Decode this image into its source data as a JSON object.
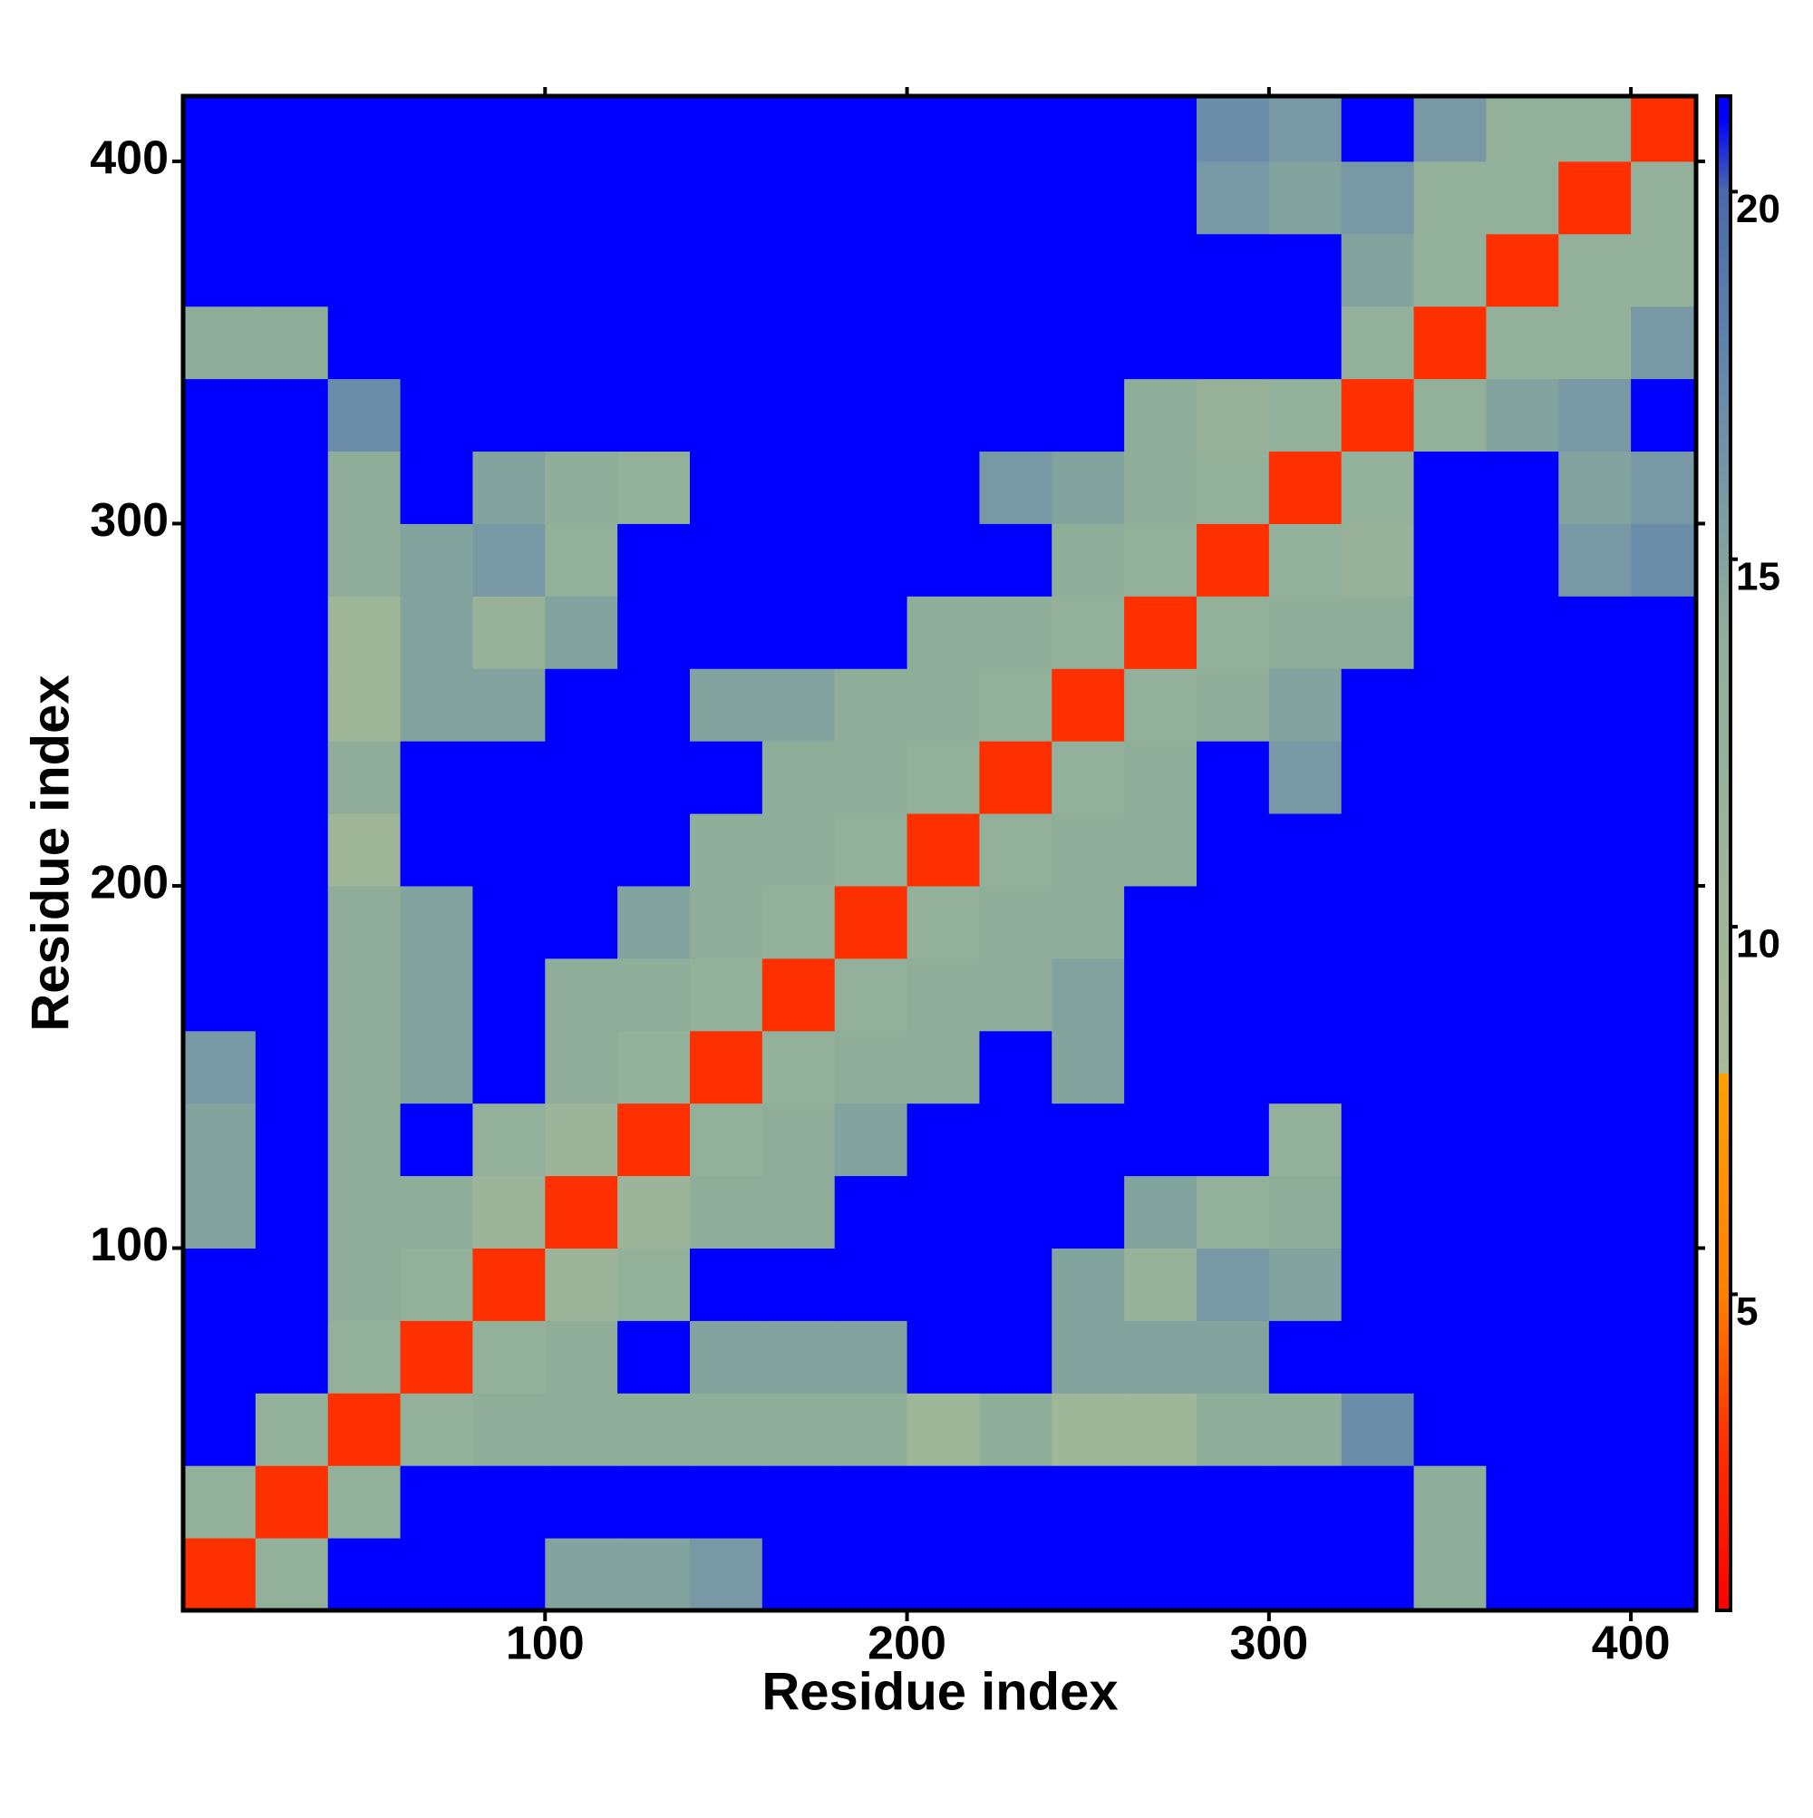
{
  "chart_data": {
    "type": "heatmap",
    "xlabel": "Residue index",
    "ylabel": "Residue index",
    "xlim": [
      0,
      418
    ],
    "ylim": [
      0,
      418
    ],
    "xticks": [
      100,
      200,
      300,
      400
    ],
    "yticks": [
      100,
      200,
      300,
      400
    ],
    "x_edges": [
      0,
      20,
      40,
      60,
      80,
      100,
      120,
      140,
      160,
      180,
      200,
      220,
      240,
      260,
      280,
      300,
      320,
      340,
      360,
      380,
      400,
      420
    ],
    "y_edges": [
      0,
      20,
      40,
      60,
      80,
      100,
      120,
      140,
      160,
      180,
      200,
      220,
      240,
      260,
      280,
      300,
      320,
      340,
      360,
      380,
      400,
      420
    ],
    "z": [
      [
        3,
        13,
        21,
        21,
        21,
        15,
        15,
        16,
        21,
        21,
        21,
        21,
        21,
        21,
        21,
        21,
        21,
        14,
        21,
        21,
        21
      ],
      [
        13,
        3,
        13,
        21,
        21,
        21,
        21,
        21,
        21,
        21,
        21,
        21,
        21,
        21,
        21,
        21,
        21,
        14,
        21,
        21,
        21
      ],
      [
        21,
        13,
        3,
        13,
        14,
        14,
        14,
        14,
        14,
        14,
        10,
        14,
        10,
        10,
        14,
        14,
        17,
        21,
        21,
        21,
        21
      ],
      [
        21,
        21,
        13,
        3,
        13,
        14,
        21,
        15,
        15,
        15,
        21,
        21,
        15,
        15,
        15,
        21,
        21,
        21,
        21,
        21,
        21
      ],
      [
        21,
        21,
        14,
        13,
        3,
        11,
        13,
        21,
        21,
        21,
        21,
        21,
        15,
        12,
        16,
        15,
        21,
        21,
        21,
        21,
        21
      ],
      [
        15,
        21,
        14,
        14,
        11,
        3,
        11,
        14,
        14,
        21,
        21,
        21,
        21,
        15,
        13,
        14,
        21,
        21,
        21,
        21,
        21
      ],
      [
        15,
        21,
        14,
        21,
        13,
        11,
        3,
        13,
        14,
        15,
        21,
        21,
        21,
        21,
        21,
        13,
        21,
        21,
        21,
        21,
        21
      ],
      [
        16,
        21,
        14,
        15,
        21,
        14,
        13,
        3,
        13,
        14,
        14,
        21,
        15,
        21,
        21,
        21,
        21,
        21,
        21,
        21,
        21
      ],
      [
        21,
        21,
        14,
        15,
        21,
        14,
        14,
        13,
        3,
        13,
        14,
        14,
        15,
        21,
        21,
        21,
        21,
        21,
        21,
        21,
        21
      ],
      [
        21,
        21,
        14,
        15,
        21,
        21,
        15,
        14,
        13,
        3,
        13,
        14,
        14,
        21,
        21,
        21,
        21,
        21,
        21,
        21,
        21
      ],
      [
        21,
        21,
        10,
        21,
        21,
        21,
        21,
        14,
        14,
        13,
        3,
        13,
        14,
        14,
        21,
        21,
        21,
        21,
        21,
        21,
        21
      ],
      [
        21,
        21,
        14,
        21,
        21,
        21,
        21,
        21,
        14,
        14,
        13,
        3,
        13,
        14,
        21,
        16,
        21,
        21,
        21,
        21,
        21
      ],
      [
        21,
        21,
        10,
        15,
        15,
        21,
        21,
        15,
        15,
        14,
        14,
        13,
        3,
        13,
        14,
        15,
        21,
        21,
        21,
        21,
        21
      ],
      [
        21,
        21,
        10,
        15,
        12,
        15,
        21,
        21,
        21,
        21,
        14,
        14,
        13,
        3,
        13,
        14,
        14,
        21,
        21,
        21,
        21
      ],
      [
        21,
        21,
        14,
        15,
        16,
        13,
        21,
        21,
        21,
        21,
        21,
        21,
        14,
        13,
        3,
        13,
        12,
        21,
        21,
        16,
        17
      ],
      [
        21,
        21,
        14,
        21,
        15,
        14,
        13,
        21,
        21,
        21,
        21,
        16,
        15,
        14,
        13,
        3,
        13,
        21,
        21,
        15,
        16
      ],
      [
        21,
        21,
        17,
        21,
        21,
        21,
        21,
        21,
        21,
        21,
        21,
        21,
        21,
        14,
        12,
        13,
        3,
        13,
        15,
        16,
        21
      ],
      [
        14,
        14,
        21,
        21,
        21,
        21,
        21,
        21,
        21,
        21,
        21,
        21,
        21,
        21,
        21,
        21,
        13,
        3,
        13,
        13,
        16
      ],
      [
        21,
        21,
        21,
        21,
        21,
        21,
        21,
        21,
        21,
        21,
        21,
        21,
        21,
        21,
        21,
        21,
        15,
        13,
        3,
        13,
        13
      ],
      [
        21,
        21,
        21,
        21,
        21,
        21,
        21,
        21,
        21,
        21,
        21,
        21,
        21,
        21,
        16,
        15,
        16,
        13,
        13,
        3,
        13
      ],
      [
        21,
        21,
        21,
        21,
        21,
        21,
        21,
        21,
        21,
        21,
        21,
        21,
        21,
        21,
        17,
        16,
        21,
        16,
        13,
        13,
        3
      ]
    ],
    "clim": [
      0.7,
      21.3
    ],
    "cticks": [
      5,
      10,
      15,
      20
    ],
    "colorscale": [
      [
        0.7,
        "#ff0000"
      ],
      [
        3,
        "#ff3000"
      ],
      [
        5,
        "#ff8000"
      ],
      [
        8,
        "#ffa000"
      ],
      [
        8,
        "#a8ba98"
      ],
      [
        14,
        "#8fae9a"
      ],
      [
        18,
        "#5f82ae"
      ],
      [
        20,
        "#4a6aa8"
      ],
      [
        21,
        "#0000ff"
      ],
      [
        21.3,
        "#0000ff"
      ]
    ]
  }
}
